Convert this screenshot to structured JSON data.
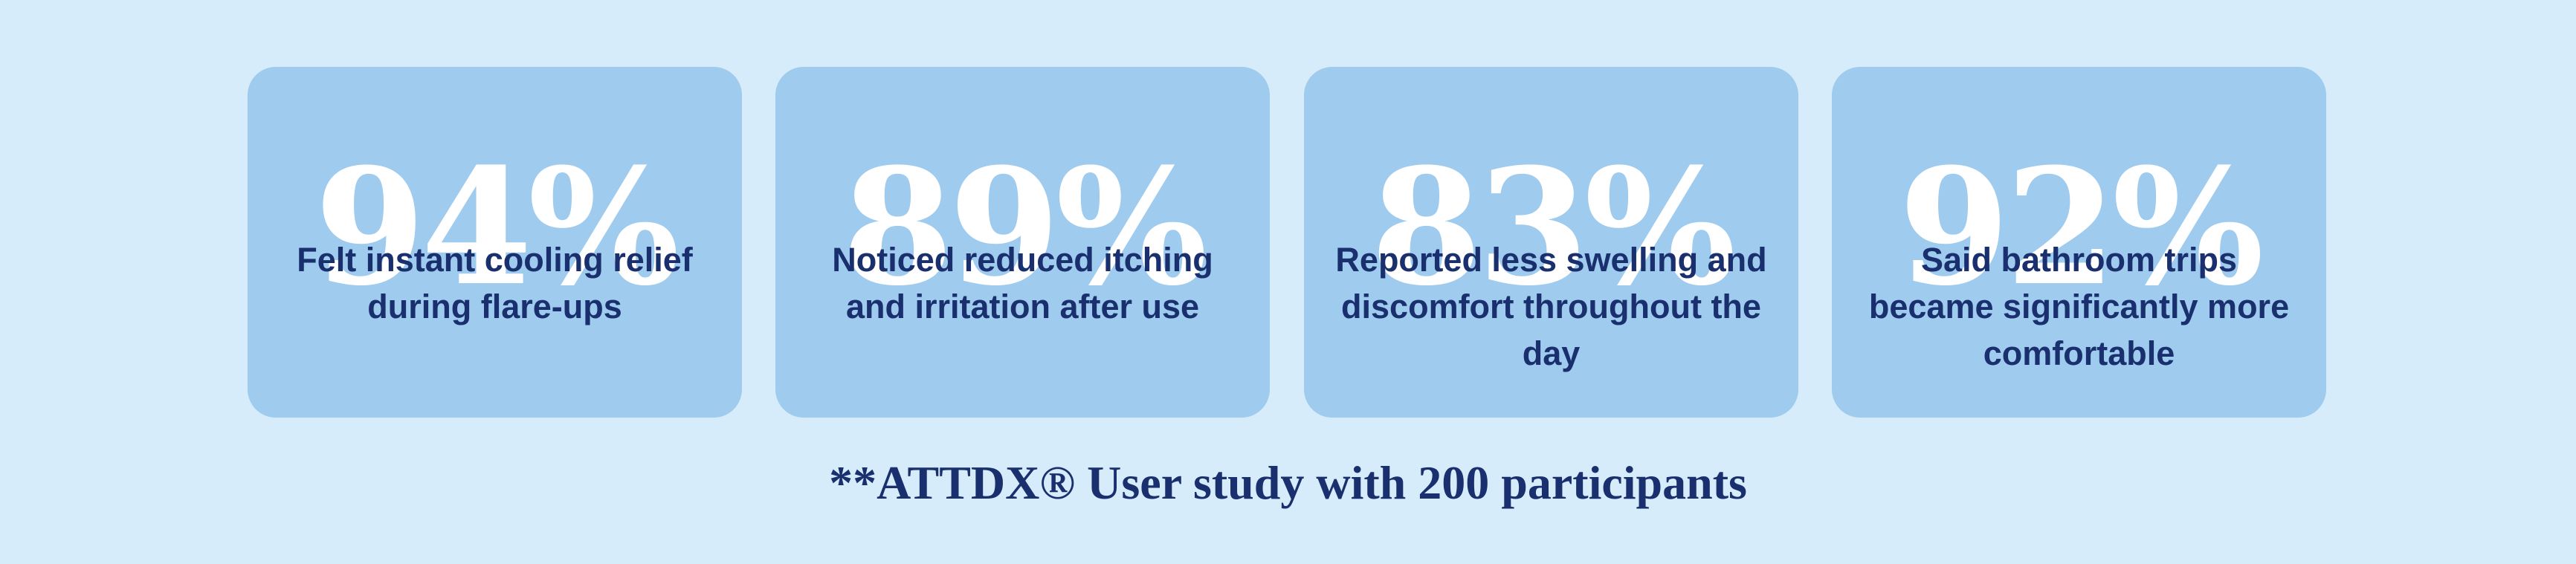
{
  "stats": [
    {
      "value": "94%",
      "description": "Felt instant cooling relief during flare-ups"
    },
    {
      "value": "89%",
      "description": "Noticed reduced itching and irritation after use"
    },
    {
      "value": "83%",
      "description": "Reported less swelling and discomfort throughout the day"
    },
    {
      "value": "92%",
      "description": "Said bathroom trips became significantly more comfortable"
    }
  ],
  "footnote": "**ATTDX® User study with 200 participants",
  "colors": {
    "background": "#d6ecfb",
    "card": "#9ecbee",
    "value_text": "#ffffff",
    "text": "#1a2f6e"
  }
}
